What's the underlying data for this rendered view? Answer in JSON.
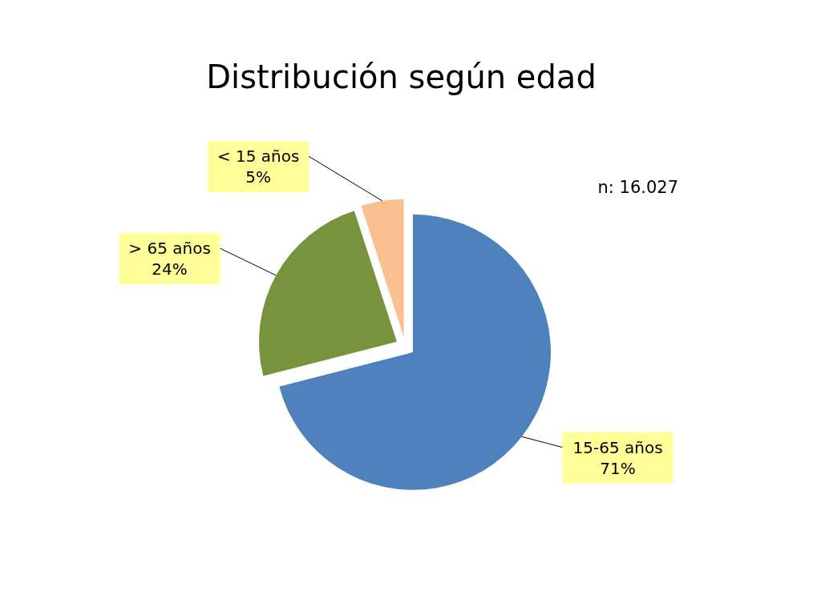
{
  "chart_data": {
    "type": "pie",
    "title": "Distribución según edad",
    "categories": [
      "15-65 años",
      "> 65 años",
      "< 15 años"
    ],
    "values": [
      71,
      24,
      5
    ],
    "colors": [
      "#4f81bd",
      "#77933c",
      "#fac090"
    ],
    "value_labels": [
      "71%",
      "24%",
      "5%"
    ],
    "annotations": [
      "n: 16.027"
    ]
  }
}
